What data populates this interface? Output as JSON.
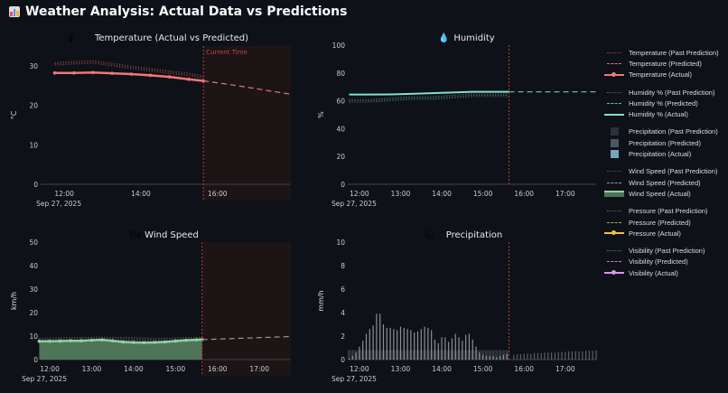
{
  "title": "Weather Analysis: Actual Data vs Predictions",
  "title_icon": "bar-chart-icon",
  "annotation": "Current Time",
  "date_label": "Sep 27, 2025",
  "legend": [
    {
      "label": "Temperature (Past Prediction)",
      "style": "dot",
      "color": "#8a4a4a"
    },
    {
      "label": "Temperature (Predicted)",
      "style": "dash",
      "color": "#e07a7a"
    },
    {
      "label": "Temperature (Actual)",
      "style": "solid-marker",
      "color": "#f07878"
    },
    {
      "label": "Humidity % (Past Prediction)",
      "style": "dot",
      "color": "#4a6a66"
    },
    {
      "label": "Humidity % (Predicted)",
      "style": "dash",
      "color": "#6ab5aa"
    },
    {
      "label": "Humidity % (Actual)",
      "style": "solid",
      "color": "#7fe0d0"
    },
    {
      "label": "Precipitation (Past Prediction)",
      "style": "box",
      "color": "#2a3038"
    },
    {
      "label": "Precipitation (Predicted)",
      "style": "box",
      "color": "#4a5866"
    },
    {
      "label": "Precipitation (Actual)",
      "style": "box",
      "color": "#7aa4bc"
    },
    {
      "label": "Wind Speed (Past Prediction)",
      "style": "dot",
      "color": "#555"
    },
    {
      "label": "Wind Speed (Predicted)",
      "style": "dash",
      "color": "#999"
    },
    {
      "label": "Wind Speed (Actual)",
      "style": "area-marker",
      "color": "#8fd1a0"
    },
    {
      "label": "Pressure (Past Prediction)",
      "style": "dot",
      "color": "#666"
    },
    {
      "label": "Pressure (Predicted)",
      "style": "dash",
      "color": "#b8a060"
    },
    {
      "label": "Pressure (Actual)",
      "style": "solid-marker",
      "color": "#f0c040"
    },
    {
      "label": "Visibility (Past Prediction)",
      "style": "dot",
      "color": "#666"
    },
    {
      "label": "Visibility (Predicted)",
      "style": "dash",
      "color": "#c080d0"
    },
    {
      "label": "Visibility (Actual)",
      "style": "solid-marker",
      "color": "#e090f0"
    }
  ],
  "chart_data": [
    {
      "type": "line",
      "title": "Temperature (Actual vs Predicted)",
      "icon": "thermometer-icon",
      "ylabel": "°C",
      "ylim": [
        0,
        35
      ],
      "yticks": [
        0,
        10,
        20,
        30
      ],
      "xticks": [
        "12:00",
        "14:00",
        "16:00"
      ],
      "current_time": "15:38",
      "series": [
        {
          "name": "Temperature (Past Prediction)",
          "x": [
            "11:45",
            "12:15",
            "12:45",
            "13:15",
            "13:45",
            "14:15",
            "14:45",
            "15:15",
            "15:38"
          ],
          "y": [
            30.5,
            30.8,
            31.0,
            30.3,
            29.6,
            29.0,
            28.4,
            27.8,
            27.2
          ]
        },
        {
          "name": "Temperature (Actual)",
          "x": [
            "11:45",
            "12:15",
            "12:45",
            "13:15",
            "13:45",
            "14:15",
            "14:45",
            "15:15",
            "15:38"
          ],
          "y": [
            28.2,
            28.2,
            28.3,
            28.1,
            27.9,
            27.6,
            27.2,
            26.6,
            26.2
          ]
        },
        {
          "name": "Temperature (Predicted)",
          "x": [
            "15:38",
            "16:30",
            "17:55"
          ],
          "y": [
            26.2,
            25.0,
            22.8
          ]
        }
      ]
    },
    {
      "type": "line",
      "title": "Humidity",
      "icon": "droplet-icon",
      "ylabel": "%",
      "ylim": [
        0,
        100
      ],
      "yticks": [
        0,
        20,
        40,
        60,
        80,
        100
      ],
      "xticks": [
        "12:00",
        "13:00",
        "14:00",
        "15:00",
        "16:00",
        "17:00"
      ],
      "current_time": "15:38",
      "series": [
        {
          "name": "Humidity % (Past Prediction)",
          "x": [
            "11:45",
            "12:15",
            "12:45",
            "13:15",
            "13:45",
            "14:15",
            "14:45",
            "15:15",
            "15:38"
          ],
          "y": [
            60,
            60,
            61,
            62,
            62,
            63,
            64,
            64,
            64
          ]
        },
        {
          "name": "Humidity % (Actual)",
          "x": [
            "11:45",
            "12:15",
            "12:45",
            "13:15",
            "13:45",
            "14:15",
            "14:45",
            "15:15",
            "15:38"
          ],
          "y": [
            64.5,
            64.5,
            64.6,
            65,
            65.5,
            66,
            66.5,
            66.5,
            66.5
          ]
        },
        {
          "name": "Humidity % (Predicted)",
          "x": [
            "15:38",
            "16:30",
            "17:45"
          ],
          "y": [
            66.5,
            66.5,
            66.5
          ]
        }
      ]
    },
    {
      "type": "area",
      "title": "Wind Speed",
      "icon": "wind-icon",
      "ylabel": "km/h",
      "ylim": [
        0,
        50
      ],
      "yticks": [
        0,
        10,
        20,
        30,
        40,
        50
      ],
      "xticks": [
        "12:00",
        "13:00",
        "14:00",
        "15:00",
        "16:00",
        "17:00"
      ],
      "current_time": "15:38",
      "series": [
        {
          "name": "Wind Speed (Past Prediction)",
          "x": [
            "11:45",
            "12:30",
            "13:15",
            "14:00",
            "14:45",
            "15:38"
          ],
          "y": [
            8.5,
            8.8,
            9.0,
            8.8,
            8.5,
            9.0
          ]
        },
        {
          "name": "Wind Speed (Actual)",
          "x": [
            "11:45",
            "12:00",
            "12:15",
            "12:30",
            "12:45",
            "13:00",
            "13:15",
            "13:30",
            "13:45",
            "14:00",
            "14:15",
            "14:30",
            "14:45",
            "15:00",
            "15:15",
            "15:30",
            "15:38"
          ],
          "y": [
            7.8,
            7.8,
            7.9,
            8.0,
            8.0,
            8.2,
            8.4,
            8.0,
            7.5,
            7.3,
            7.2,
            7.3,
            7.5,
            7.9,
            8.2,
            8.4,
            8.5
          ]
        },
        {
          "name": "Wind Speed (Predicted)",
          "x": [
            "15:38",
            "17:45"
          ],
          "y": [
            8.5,
            9.8
          ]
        }
      ]
    },
    {
      "type": "bar",
      "title": "Precipitation",
      "icon": "rain-cloud-icon",
      "ylabel": "mm/h",
      "ylim": [
        0,
        10
      ],
      "yticks": [
        0,
        2,
        4,
        6,
        8,
        10
      ],
      "xticks": [
        "12:00",
        "13:00",
        "14:00",
        "15:00",
        "16:00",
        "17:00"
      ],
      "current_time": "15:38",
      "past_prediction": {
        "x_start": "11:45",
        "x_end": "15:38",
        "step_min": 5,
        "value": 0.8
      },
      "actual": {
        "x_start": "11:45",
        "step_min": 5,
        "values": [
          0.1,
          0.3,
          0.6,
          1.1,
          1.6,
          2.2,
          2.6,
          2.9,
          3.9,
          3.9,
          3.0,
          2.7,
          2.7,
          2.6,
          2.5,
          2.8,
          2.7,
          2.6,
          2.5,
          2.3,
          2.4,
          2.6,
          2.8,
          2.7,
          2.5,
          1.7,
          1.4,
          1.9,
          1.9,
          1.5,
          1.8,
          2.2,
          1.9,
          1.6,
          2.1,
          2.2,
          1.7,
          1.1,
          0.6,
          0.4,
          0.3,
          0.3,
          0.3,
          0.2,
          0.3,
          0.4,
          0.5
        ]
      },
      "predicted": {
        "x_start": "15:45",
        "step_min": 5,
        "values": [
          0.4,
          0.45,
          0.45,
          0.5,
          0.5,
          0.5,
          0.55,
          0.55,
          0.55,
          0.6,
          0.6,
          0.6,
          0.6,
          0.65,
          0.65,
          0.65,
          0.7,
          0.7,
          0.7,
          0.7,
          0.7,
          0.75,
          0.75,
          0.75,
          0.8
        ]
      }
    }
  ]
}
